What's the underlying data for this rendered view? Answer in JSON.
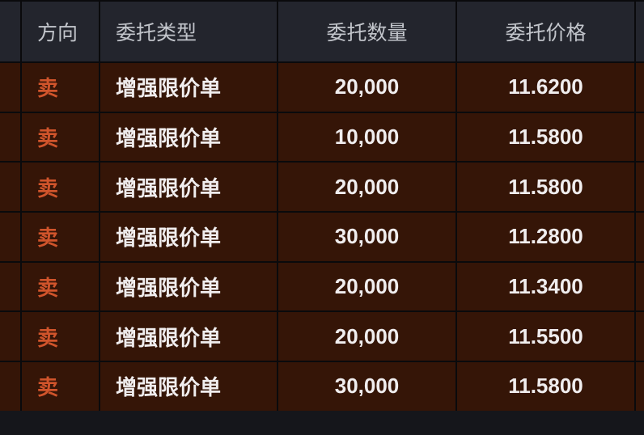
{
  "table": {
    "columns": [
      {
        "key": "direction",
        "label": "方向",
        "align": "left"
      },
      {
        "key": "order_type",
        "label": "委托类型",
        "align": "left"
      },
      {
        "key": "quantity",
        "label": "委托数量",
        "align": "center"
      },
      {
        "key": "price",
        "label": "委托价格",
        "align": "center"
      }
    ],
    "rows": [
      {
        "direction": "卖",
        "order_type": "增强限价单",
        "quantity": "20,000",
        "price": "11.6200"
      },
      {
        "direction": "卖",
        "order_type": "增强限价单",
        "quantity": "10,000",
        "price": "11.5800"
      },
      {
        "direction": "卖",
        "order_type": "增强限价单",
        "quantity": "20,000",
        "price": "11.5800"
      },
      {
        "direction": "卖",
        "order_type": "增强限价单",
        "quantity": "30,000",
        "price": "11.2800"
      },
      {
        "direction": "卖",
        "order_type": "增强限价单",
        "quantity": "20,000",
        "price": "11.3400"
      },
      {
        "direction": "卖",
        "order_type": "增强限价单",
        "quantity": "20,000",
        "price": "11.5500"
      },
      {
        "direction": "卖",
        "order_type": "增强限价单",
        "quantity": "30,000",
        "price": "11.5800"
      }
    ]
  },
  "colors": {
    "header_bg": "#23252d",
    "row_bg": "#351507",
    "grid_line": "#0a0a0c",
    "header_text": "#c2c5cb",
    "row_text": "#f0edee",
    "sell_accent": "#d0542b",
    "footer_bg": "#15161b"
  }
}
